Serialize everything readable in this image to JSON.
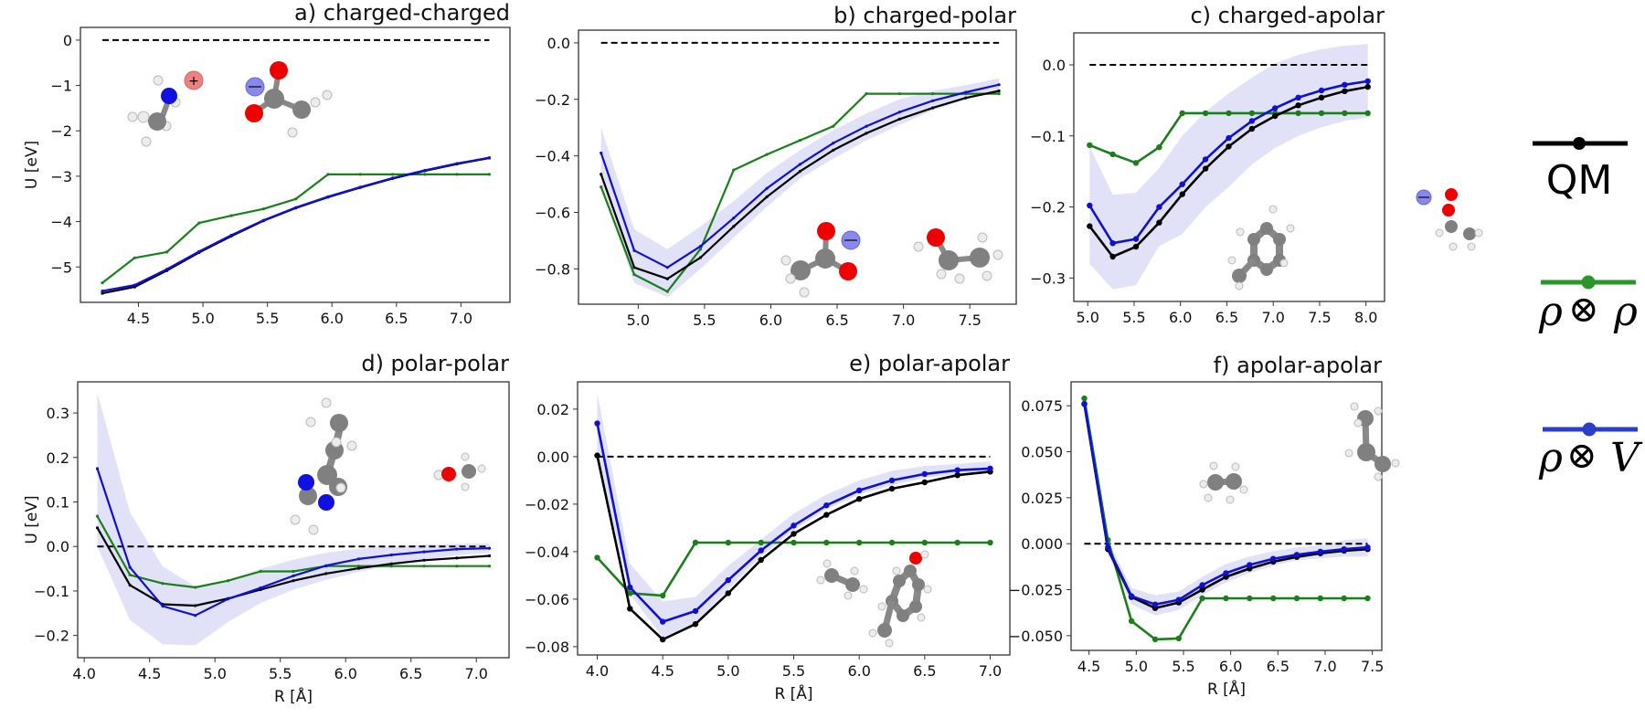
{
  "figure": {
    "legend": [
      {
        "key": "qm",
        "label": "QM",
        "color": "#000000"
      },
      {
        "key": "rho_rho",
        "label_left": "ρ",
        "label_op": "⊗",
        "label_right": "ρ",
        "color": "#228b22"
      },
      {
        "key": "rho_v",
        "label_left": "ρ",
        "label_op": "⊗",
        "label_right": "V",
        "color": "#2233cc"
      }
    ],
    "colors": {
      "qm": "#000000",
      "rho_rho": "#1a7f1a",
      "rho_v": "#1010d0",
      "band": "#dcdcf7",
      "zero_line": "#000000"
    }
  },
  "chart_data": [
    {
      "type": "line",
      "id": "a",
      "title": "a) charged-charged",
      "xlabel": "",
      "ylabel": "U [eV]",
      "xlim": [
        4.05,
        7.38
      ],
      "ylim": [
        -5.78,
        0.28
      ],
      "xticks": [
        4.5,
        5.0,
        5.5,
        6.0,
        6.5,
        7.0
      ],
      "xtick_labels": [
        "4.5",
        "5.0",
        "5.5",
        "6.0",
        "6.5",
        "7.0"
      ],
      "yticks": [
        0,
        -1,
        -2,
        -3,
        -4,
        -5
      ],
      "ytick_labels": [
        "0",
        "−1",
        "−2",
        "−3",
        "−4",
        "−5"
      ],
      "zero_line": true,
      "markers": false,
      "molecules": [
        "methylammonium (+)",
        "acetate (−)"
      ],
      "x": [
        4.22,
        4.47,
        4.72,
        4.97,
        5.22,
        5.47,
        5.72,
        5.97,
        6.22,
        6.47,
        6.72,
        6.97,
        7.22
      ],
      "series": [
        {
          "name": "QM",
          "key": "qm",
          "values": [
            -5.58,
            -5.44,
            -5.08,
            -4.68,
            -4.32,
            -3.98,
            -3.7,
            -3.46,
            -3.25,
            -3.05,
            -2.88,
            -2.73,
            -2.6
          ]
        },
        {
          "name": "ρ⊗ρ",
          "key": "rho_rho",
          "values": [
            -5.35,
            -4.8,
            -4.67,
            -4.03,
            -3.87,
            -3.72,
            -3.5,
            -2.96,
            -2.96,
            -2.96,
            -2.96,
            -2.96,
            -2.96
          ]
        },
        {
          "name": "ρ⊗V",
          "key": "rho_v",
          "values": [
            -5.53,
            -5.4,
            -5.05,
            -4.66,
            -4.3,
            -3.97,
            -3.69,
            -3.45,
            -3.24,
            -3.04,
            -2.87,
            -2.72,
            -2.59
          ]
        }
      ],
      "band": null
    },
    {
      "type": "line",
      "id": "b",
      "title": "b) charged-polar",
      "xlabel": "",
      "ylabel": "",
      "xlim": [
        4.55,
        7.85
      ],
      "ylim": [
        -0.925,
        0.045
      ],
      "xticks": [
        5.0,
        5.5,
        6.0,
        6.5,
        7.0,
        7.5
      ],
      "xtick_labels": [
        "5.0",
        "5.5",
        "6.0",
        "6.5",
        "7.0",
        "7.5"
      ],
      "yticks": [
        0.0,
        -0.2,
        -0.4,
        -0.6,
        -0.8
      ],
      "ytick_labels": [
        "0.0",
        "−0.2",
        "−0.4",
        "−0.6",
        "−0.8"
      ],
      "zero_line": true,
      "markers": false,
      "molecules": [
        "acetate (−)",
        "ethanol"
      ],
      "x": [
        4.72,
        4.97,
        5.22,
        5.47,
        5.72,
        5.97,
        6.22,
        6.47,
        6.72,
        6.97,
        7.22,
        7.47,
        7.72
      ],
      "series": [
        {
          "name": "QM",
          "key": "qm",
          "values": [
            -0.465,
            -0.795,
            -0.835,
            -0.76,
            -0.65,
            -0.545,
            -0.455,
            -0.38,
            -0.32,
            -0.27,
            -0.23,
            -0.195,
            -0.17
          ]
        },
        {
          "name": "ρ⊗ρ",
          "key": "rho_rho",
          "values": [
            -0.51,
            -0.82,
            -0.88,
            -0.73,
            -0.45,
            -0.395,
            -0.345,
            -0.295,
            -0.18,
            -0.18,
            -0.18,
            -0.18,
            -0.18
          ]
        },
        {
          "name": "ρ⊗V",
          "key": "rho_v",
          "values": [
            -0.39,
            -0.735,
            -0.795,
            -0.72,
            -0.62,
            -0.515,
            -0.43,
            -0.355,
            -0.295,
            -0.245,
            -0.205,
            -0.175,
            -0.148
          ]
        }
      ],
      "band": {
        "lower": [
          -0.5,
          -0.85,
          -0.9,
          -0.8,
          -0.69,
          -0.58,
          -0.48,
          -0.41,
          -0.345,
          -0.29,
          -0.24,
          -0.2,
          -0.175
        ],
        "upper": [
          -0.3,
          -0.66,
          -0.73,
          -0.65,
          -0.56,
          -0.46,
          -0.38,
          -0.31,
          -0.25,
          -0.2,
          -0.17,
          -0.15,
          -0.125
        ]
      }
    },
    {
      "type": "line",
      "id": "c",
      "title": "c) charged-apolar",
      "xlabel": "",
      "ylabel": "",
      "xlim": [
        4.85,
        8.2
      ],
      "ylim": [
        -0.333,
        0.045
      ],
      "xticks": [
        5.0,
        5.5,
        6.0,
        6.5,
        7.0,
        7.5,
        8.0
      ],
      "xtick_labels": [
        "5.0",
        "5.5",
        "6.0",
        "6.5",
        "7.0",
        "7.5",
        "8.0"
      ],
      "yticks": [
        0.0,
        -0.1,
        -0.2,
        -0.3
      ],
      "ytick_labels": [
        "0.0",
        "−0.1",
        "−0.2",
        "−0.3"
      ],
      "zero_line": true,
      "markers": true,
      "molecules": [
        "toluene",
        "acetate (−)"
      ],
      "x": [
        5.02,
        5.27,
        5.52,
        5.77,
        6.02,
        6.27,
        6.52,
        6.77,
        7.02,
        7.27,
        7.52,
        7.77,
        8.02
      ],
      "series": [
        {
          "name": "QM",
          "key": "qm",
          "values": [
            -0.227,
            -0.27,
            -0.256,
            -0.222,
            -0.182,
            -0.146,
            -0.115,
            -0.09,
            -0.072,
            -0.057,
            -0.046,
            -0.037,
            -0.031
          ]
        },
        {
          "name": "ρ⊗ρ",
          "key": "rho_rho",
          "values": [
            -0.113,
            -0.126,
            -0.138,
            -0.116,
            -0.068,
            -0.068,
            -0.068,
            -0.068,
            -0.068,
            -0.068,
            -0.068,
            -0.068,
            -0.068
          ]
        },
        {
          "name": "ρ⊗V",
          "key": "rho_v",
          "values": [
            -0.198,
            -0.251,
            -0.245,
            -0.2,
            -0.168,
            -0.133,
            -0.103,
            -0.079,
            -0.061,
            -0.046,
            -0.036,
            -0.028,
            -0.023
          ]
        }
      ],
      "band": {
        "lower": [
          -0.28,
          -0.316,
          -0.31,
          -0.255,
          -0.238,
          -0.2,
          -0.172,
          -0.14,
          -0.117,
          -0.1,
          -0.088,
          -0.079,
          -0.074
        ],
        "upper": [
          -0.115,
          -0.183,
          -0.18,
          -0.145,
          -0.1,
          -0.066,
          -0.04,
          -0.018,
          0.002,
          0.014,
          0.022,
          0.027,
          0.029
        ]
      }
    },
    {
      "type": "line",
      "id": "d",
      "title": "d) polar-polar",
      "xlabel": "R [Å]",
      "ylabel": "U [eV]",
      "xlim": [
        3.95,
        7.25
      ],
      "ylim": [
        -0.25,
        0.37
      ],
      "xticks": [
        4.0,
        4.5,
        5.0,
        5.5,
        6.0,
        6.5,
        7.0
      ],
      "xtick_labels": [
        "4.0",
        "4.5",
        "5.0",
        "5.5",
        "6.0",
        "6.5",
        "7.0"
      ],
      "yticks": [
        0.3,
        0.2,
        0.1,
        0.0,
        -0.1,
        -0.2
      ],
      "ytick_labels": [
        "0.3",
        "0.2",
        "0.1",
        "0.0",
        "−0.1",
        "−0.2"
      ],
      "zero_line": true,
      "markers": false,
      "molecules": [
        "4-methylimidazole",
        "methanol"
      ],
      "x": [
        4.1,
        4.35,
        4.6,
        4.85,
        5.1,
        5.35,
        5.6,
        5.85,
        6.1,
        6.35,
        6.6,
        6.85,
        7.1
      ],
      "series": [
        {
          "name": "QM",
          "key": "qm",
          "values": [
            0.042,
            -0.087,
            -0.13,
            -0.133,
            -0.117,
            -0.097,
            -0.077,
            -0.061,
            -0.049,
            -0.039,
            -0.031,
            -0.026,
            -0.021
          ]
        },
        {
          "name": "ρ⊗ρ",
          "key": "rho_rho",
          "values": [
            0.068,
            -0.064,
            -0.083,
            -0.092,
            -0.077,
            -0.056,
            -0.056,
            -0.044,
            -0.044,
            -0.044,
            -0.044,
            -0.044,
            -0.044
          ]
        },
        {
          "name": "ρ⊗V",
          "key": "rho_v",
          "values": [
            0.175,
            -0.047,
            -0.134,
            -0.155,
            -0.118,
            -0.093,
            -0.066,
            -0.043,
            -0.028,
            -0.019,
            -0.012,
            -0.006,
            -0.004
          ]
        }
      ],
      "band": {
        "lower": [
          0.0,
          -0.165,
          -0.22,
          -0.222,
          -0.17,
          -0.127,
          -0.097,
          -0.075,
          -0.057,
          -0.043,
          -0.03,
          -0.02,
          -0.014
        ],
        "upper": [
          0.345,
          0.077,
          -0.045,
          -0.09,
          -0.075,
          -0.05,
          -0.03,
          -0.014,
          -0.005,
          0.0,
          0.004,
          0.006,
          0.007
        ]
      }
    },
    {
      "type": "line",
      "id": "e",
      "title": "e) polar-apolar",
      "xlabel": "R [Å]",
      "ylabel": "",
      "xlim": [
        3.85,
        7.15
      ],
      "ylim": [
        -0.0835,
        0.0315
      ],
      "xticks": [
        4.0,
        4.5,
        5.0,
        5.5,
        6.0,
        6.5,
        7.0
      ],
      "xtick_labels": [
        "4.0",
        "4.5",
        "5.0",
        "5.5",
        "6.0",
        "6.5",
        "7.0"
      ],
      "yticks": [
        0.02,
        0.0,
        -0.02,
        -0.04,
        -0.06,
        -0.08
      ],
      "ytick_labels": [
        "0.02",
        "0.00",
        "−0.02",
        "−0.04",
        "−0.06",
        "−0.08"
      ],
      "zero_line": true,
      "markers": true,
      "molecules": [
        "ethane",
        "p-cresol"
      ],
      "x": [
        4.0,
        4.25,
        4.5,
        4.75,
        5.0,
        5.25,
        5.5,
        5.75,
        6.0,
        6.25,
        6.5,
        6.75,
        7.0
      ],
      "series": [
        {
          "name": "QM",
          "key": "qm",
          "values": [
            0.0005,
            -0.064,
            -0.077,
            -0.0705,
            -0.0575,
            -0.0435,
            -0.0325,
            -0.0245,
            -0.0178,
            -0.0135,
            -0.0108,
            -0.0078,
            -0.0063
          ]
        },
        {
          "name": "ρ⊗ρ",
          "key": "rho_rho",
          "values": [
            -0.0425,
            -0.0575,
            -0.0585,
            -0.0362,
            -0.0362,
            -0.0362,
            -0.0362,
            -0.0362,
            -0.0362,
            -0.0362,
            -0.0362,
            -0.0362,
            -0.0362
          ]
        },
        {
          "name": "ρ⊗V",
          "key": "rho_v",
          "values": [
            0.014,
            -0.055,
            -0.0695,
            -0.065,
            -0.052,
            -0.0395,
            -0.029,
            -0.0205,
            -0.0142,
            -0.01,
            -0.0073,
            -0.0057,
            -0.005
          ]
        }
      ],
      "band": {
        "lower": [
          0.0,
          -0.058,
          -0.076,
          -0.07,
          -0.056,
          -0.042,
          -0.031,
          -0.022,
          -0.016,
          -0.012,
          -0.009,
          -0.0075,
          -0.0065
        ],
        "upper": [
          0.027,
          -0.045,
          -0.061,
          -0.059,
          -0.046,
          -0.035,
          -0.024,
          -0.016,
          -0.01,
          -0.006,
          -0.004,
          -0.003,
          -0.002
        ]
      }
    },
    {
      "type": "line",
      "id": "f",
      "title": "f) apolar-apolar",
      "xlabel": "R [Å]",
      "ylabel": "",
      "xlim": [
        4.31,
        7.6
      ],
      "ylim": [
        -0.058,
        0.088
      ],
      "xticks": [
        4.5,
        5.0,
        5.5,
        6.0,
        6.5,
        7.0,
        7.5
      ],
      "xtick_labels": [
        "4.5",
        "5.0",
        "5.5",
        "6.0",
        "6.5",
        "7.0",
        "7.5"
      ],
      "yticks": [
        0.075,
        0.05,
        0.025,
        0.0,
        -0.025,
        -0.05
      ],
      "ytick_labels": [
        "0.075",
        "0.050",
        "0.025",
        "0.000",
        "−0.025",
        "−0.050"
      ],
      "zero_line": true,
      "markers": true,
      "molecules": [
        "ethane",
        "ethane"
      ],
      "x": [
        4.45,
        4.7,
        4.95,
        5.2,
        5.45,
        5.7,
        5.95,
        6.2,
        6.45,
        6.7,
        6.95,
        7.2,
        7.45
      ],
      "series": [
        {
          "name": "QM",
          "key": "qm",
          "values": [
            0.076,
            -0.003,
            -0.029,
            -0.035,
            -0.032,
            -0.025,
            -0.018,
            -0.0135,
            -0.0098,
            -0.0072,
            -0.0052,
            -0.0038,
            -0.003
          ]
        },
        {
          "name": "ρ⊗ρ",
          "key": "rho_rho",
          "values": [
            0.079,
            0.002,
            -0.042,
            -0.052,
            -0.0515,
            -0.0297,
            -0.0297,
            -0.0297,
            -0.0297,
            -0.0297,
            -0.0297,
            -0.0297,
            -0.0297
          ]
        },
        {
          "name": "ρ⊗V",
          "key": "rho_v",
          "values": [
            0.076,
            -0.002,
            -0.0285,
            -0.033,
            -0.0305,
            -0.0225,
            -0.016,
            -0.0115,
            -0.0082,
            -0.006,
            -0.0043,
            -0.003,
            -0.002
          ]
        }
      ],
      "band": {
        "lower": [
          0.074,
          -0.006,
          -0.033,
          -0.039,
          -0.036,
          -0.028,
          -0.021,
          -0.016,
          -0.012,
          -0.009,
          -0.008,
          -0.007,
          -0.007
        ],
        "upper": [
          0.078,
          0.002,
          -0.024,
          -0.028,
          -0.026,
          -0.018,
          -0.011,
          -0.007,
          -0.004,
          -0.002,
          -0.001,
          0.002,
          0.003
        ]
      }
    }
  ]
}
